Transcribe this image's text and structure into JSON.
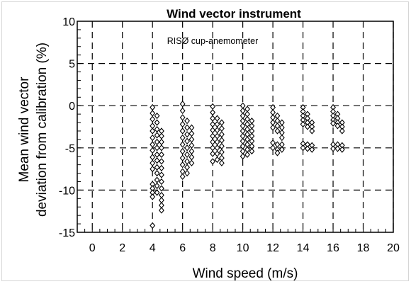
{
  "chart_data": {
    "type": "scatter",
    "title": "Wind vector instrument",
    "annotation": "RISØ cup-anemometer",
    "xlabel": "Wind speed (m/s)",
    "ylabel_line1": "Mean wind vector",
    "ylabel_line2": "deviation from calibration (%)",
    "xlim": [
      -1,
      20
    ],
    "ylim": [
      -15,
      10
    ],
    "x_ticks": [
      0,
      2,
      4,
      6,
      8,
      10,
      12,
      14,
      16,
      18,
      20
    ],
    "y_ticks": [
      -15,
      -10,
      -5,
      0,
      5,
      10
    ],
    "grid": true,
    "grid_style": "dashed",
    "marker": "open-diamond",
    "series": [
      {
        "points": [
          [
            4.0,
            -0.2
          ],
          [
            4.0,
            -0.9
          ],
          [
            4.0,
            -1.6
          ],
          [
            4.0,
            -2.4
          ],
          [
            4.0,
            -3.0
          ],
          [
            4.0,
            -3.8
          ],
          [
            4.0,
            -4.6
          ],
          [
            4.0,
            -5.3
          ],
          [
            4.0,
            -6.1
          ],
          [
            4.0,
            -6.8
          ],
          [
            4.0,
            -7.5
          ],
          [
            4.0,
            -9.3
          ],
          [
            4.0,
            -9.8
          ],
          [
            4.0,
            -10.3
          ],
          [
            4.0,
            -10.8
          ],
          [
            4.0,
            -14.2
          ],
          [
            4.3,
            -1.2
          ],
          [
            4.3,
            -2.0
          ],
          [
            4.3,
            -2.8
          ],
          [
            4.3,
            -3.5
          ],
          [
            4.3,
            -4.3
          ],
          [
            4.3,
            -5.0
          ],
          [
            4.3,
            -5.8
          ],
          [
            4.3,
            -6.5
          ],
          [
            4.3,
            -7.3
          ],
          [
            4.3,
            -8.0
          ],
          [
            4.3,
            -8.8
          ],
          [
            4.3,
            -9.5
          ],
          [
            4.3,
            -10.3
          ],
          [
            4.6,
            -3.0
          ],
          [
            4.6,
            -3.6
          ],
          [
            4.6,
            -4.3
          ],
          [
            4.6,
            -5.0
          ],
          [
            4.6,
            -5.8
          ],
          [
            4.6,
            -6.6
          ],
          [
            4.6,
            -7.4
          ],
          [
            4.6,
            -8.2
          ],
          [
            4.6,
            -9.0
          ],
          [
            4.6,
            -9.8
          ],
          [
            4.6,
            -10.6
          ],
          [
            4.6,
            -11.2
          ],
          [
            4.6,
            -11.8
          ],
          [
            4.6,
            -12.4
          ],
          [
            6.0,
            0.2
          ],
          [
            6.0,
            -0.6
          ],
          [
            6.0,
            -1.4
          ],
          [
            6.0,
            -2.2
          ],
          [
            6.0,
            -3.0
          ],
          [
            6.0,
            -3.8
          ],
          [
            6.0,
            -4.6
          ],
          [
            6.0,
            -5.4
          ],
          [
            6.0,
            -6.2
          ],
          [
            6.0,
            -7.0
          ],
          [
            6.0,
            -7.8
          ],
          [
            6.0,
            -8.4
          ],
          [
            6.3,
            -1.8
          ],
          [
            6.3,
            -2.6
          ],
          [
            6.3,
            -3.4
          ],
          [
            6.3,
            -4.2
          ],
          [
            6.3,
            -5.0
          ],
          [
            6.3,
            -5.8
          ],
          [
            6.3,
            -6.6
          ],
          [
            6.3,
            -7.3
          ],
          [
            6.3,
            -8.0
          ],
          [
            6.6,
            -2.6
          ],
          [
            6.6,
            -3.3
          ],
          [
            6.6,
            -4.0
          ],
          [
            6.6,
            -4.7
          ],
          [
            6.6,
            -5.4
          ],
          [
            6.6,
            -6.1
          ],
          [
            6.6,
            -6.8
          ],
          [
            8.0,
            -0.1
          ],
          [
            8.0,
            -0.8
          ],
          [
            8.0,
            -1.5
          ],
          [
            8.0,
            -2.2
          ],
          [
            8.0,
            -2.9
          ],
          [
            8.0,
            -3.6
          ],
          [
            8.0,
            -4.3
          ],
          [
            8.0,
            -5.0
          ],
          [
            8.0,
            -5.7
          ],
          [
            8.0,
            -6.6
          ],
          [
            8.3,
            -1.5
          ],
          [
            8.3,
            -2.2
          ],
          [
            8.3,
            -2.9
          ],
          [
            8.3,
            -3.6
          ],
          [
            8.3,
            -4.3
          ],
          [
            8.3,
            -5.0
          ],
          [
            8.3,
            -5.7
          ],
          [
            8.3,
            -6.4
          ],
          [
            8.6,
            -2.0
          ],
          [
            8.6,
            -2.7
          ],
          [
            8.6,
            -3.4
          ],
          [
            8.6,
            -4.1
          ],
          [
            8.6,
            -4.8
          ],
          [
            8.6,
            -5.5
          ],
          [
            8.6,
            -6.2
          ],
          [
            8.6,
            -6.8
          ],
          [
            10.0,
            0.0
          ],
          [
            10.0,
            -0.6
          ],
          [
            10.0,
            -1.2
          ],
          [
            10.0,
            -1.8
          ],
          [
            10.0,
            -2.4
          ],
          [
            10.0,
            -3.0
          ],
          [
            10.0,
            -3.6
          ],
          [
            10.0,
            -4.2
          ],
          [
            10.0,
            -4.8
          ],
          [
            10.0,
            -5.4
          ],
          [
            10.0,
            -6.0
          ],
          [
            10.3,
            -0.4
          ],
          [
            10.3,
            -1.0
          ],
          [
            10.3,
            -1.6
          ],
          [
            10.3,
            -2.2
          ],
          [
            10.3,
            -2.8
          ],
          [
            10.3,
            -3.4
          ],
          [
            10.3,
            -4.0
          ],
          [
            10.3,
            -4.6
          ],
          [
            10.3,
            -5.2
          ],
          [
            10.3,
            -5.8
          ],
          [
            10.6,
            -1.8
          ],
          [
            10.6,
            -2.4
          ],
          [
            10.6,
            -3.0
          ],
          [
            10.6,
            -3.6
          ],
          [
            10.6,
            -4.2
          ],
          [
            10.6,
            -4.8
          ],
          [
            10.6,
            -5.4
          ],
          [
            12.0,
            -0.2
          ],
          [
            12.0,
            -0.8
          ],
          [
            12.0,
            -1.4
          ],
          [
            12.0,
            -2.0
          ],
          [
            12.0,
            -2.6
          ],
          [
            12.0,
            -4.4
          ],
          [
            12.0,
            -5.0
          ],
          [
            12.3,
            -1.2
          ],
          [
            12.3,
            -1.8
          ],
          [
            12.3,
            -2.4
          ],
          [
            12.3,
            -3.0
          ],
          [
            12.3,
            -4.6
          ],
          [
            12.3,
            -5.2
          ],
          [
            12.3,
            -5.6
          ],
          [
            12.6,
            -2.0
          ],
          [
            12.6,
            -2.6
          ],
          [
            12.6,
            -3.2
          ],
          [
            12.6,
            -3.8
          ],
          [
            12.6,
            -4.6
          ],
          [
            12.6,
            -5.2
          ],
          [
            14.0,
            -0.2
          ],
          [
            14.0,
            -0.7
          ],
          [
            14.0,
            -1.2
          ],
          [
            14.0,
            -1.7
          ],
          [
            14.0,
            -2.2
          ],
          [
            14.0,
            -4.5
          ],
          [
            14.0,
            -5.0
          ],
          [
            14.3,
            -1.0
          ],
          [
            14.3,
            -1.5
          ],
          [
            14.3,
            -2.0
          ],
          [
            14.3,
            -2.5
          ],
          [
            14.3,
            -4.6
          ],
          [
            14.3,
            -5.1
          ],
          [
            14.6,
            -2.0
          ],
          [
            14.6,
            -2.5
          ],
          [
            14.6,
            -3.0
          ],
          [
            14.6,
            -4.7
          ],
          [
            14.6,
            -5.2
          ],
          [
            16.0,
            -0.2
          ],
          [
            16.0,
            -0.7
          ],
          [
            16.0,
            -1.2
          ],
          [
            16.0,
            -1.7
          ],
          [
            16.0,
            -2.1
          ],
          [
            16.0,
            -4.6
          ],
          [
            16.0,
            -5.1
          ],
          [
            16.3,
            -1.0
          ],
          [
            16.3,
            -1.5
          ],
          [
            16.3,
            -2.0
          ],
          [
            16.3,
            -2.4
          ],
          [
            16.3,
            -4.6
          ],
          [
            16.3,
            -5.1
          ],
          [
            16.6,
            -2.0
          ],
          [
            16.6,
            -2.5
          ],
          [
            16.6,
            -3.0
          ],
          [
            16.6,
            -4.7
          ],
          [
            16.6,
            -5.2
          ]
        ]
      }
    ]
  }
}
